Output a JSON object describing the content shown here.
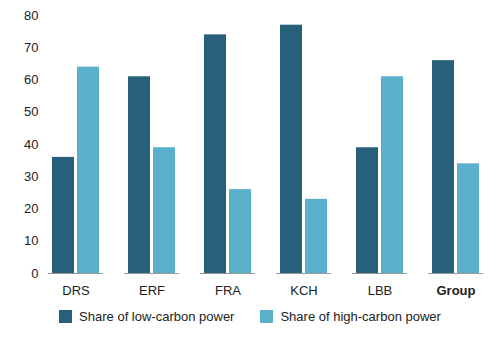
{
  "chart_data": {
    "type": "bar",
    "categories": [
      "DRS",
      "ERF",
      "FRA",
      "KCH",
      "LBB",
      "Group"
    ],
    "series": [
      {
        "name": "Share of low-carbon power",
        "color": "#28607b",
        "values": [
          36,
          61,
          74,
          77,
          39,
          66
        ]
      },
      {
        "name": "Share of high-carbon power",
        "color": "#5aafca",
        "values": [
          64,
          39,
          26,
          23,
          61,
          34
        ]
      }
    ],
    "ylim": [
      0,
      80
    ],
    "yticks": [
      0,
      10,
      20,
      30,
      40,
      50,
      60,
      70,
      80
    ],
    "grid": false,
    "legend": "bottom"
  }
}
